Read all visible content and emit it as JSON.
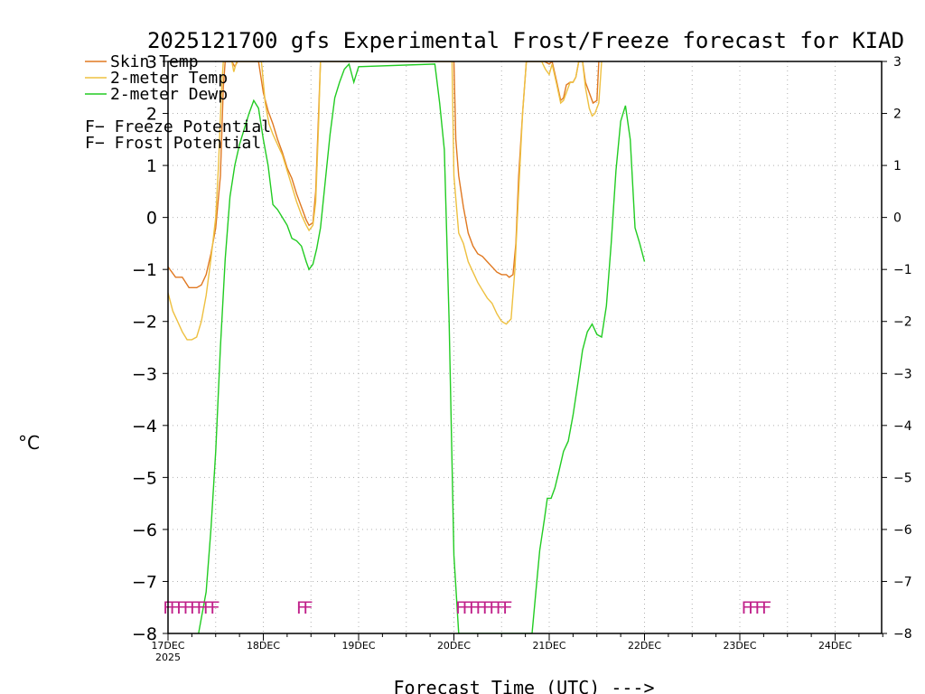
{
  "chart_data": {
    "type": "line",
    "title": "2025121700 gfs Experimental Frost/Freeze forecast for KIAD",
    "xlabel": "Forecast Time (UTC) --->",
    "ylabel": "°C",
    "ylim": [
      -8,
      3
    ],
    "xlim_days": [
      0,
      7.5
    ],
    "yticks": [
      3,
      2,
      1,
      0,
      -1,
      -2,
      -3,
      -4,
      -5,
      -6,
      -7,
      -8
    ],
    "ytick_labels": [
      "3",
      "2",
      "1",
      "0",
      "−1",
      "−2",
      "−3",
      "−4",
      "−5",
      "−6",
      "−7",
      "−8"
    ],
    "x_tick_labels": [
      "17DEC",
      "18DEC",
      "19DEC",
      "20DEC",
      "21DEC",
      "22DEC",
      "23DEC",
      "24DEC"
    ],
    "x_year_label": "2025",
    "grid": true,
    "series": [
      {
        "name": "Skin Temp",
        "color": "#e07820",
        "points": [
          [
            0.0,
            -0.95
          ],
          [
            0.08,
            -1.15
          ],
          [
            0.15,
            -1.15
          ],
          [
            0.22,
            -1.35
          ],
          [
            0.3,
            -1.35
          ],
          [
            0.35,
            -1.3
          ],
          [
            0.4,
            -1.1
          ],
          [
            0.45,
            -0.7
          ],
          [
            0.5,
            -0.2
          ],
          [
            0.55,
            0.8
          ],
          [
            0.58,
            2.5
          ],
          [
            0.6,
            3.0
          ],
          [
            0.67,
            3.0
          ],
          [
            0.7,
            2.9
          ],
          [
            0.73,
            3.0
          ],
          [
            0.95,
            3.0
          ],
          [
            1.0,
            2.4
          ],
          [
            1.05,
            2.05
          ],
          [
            1.1,
            1.8
          ],
          [
            1.15,
            1.5
          ],
          [
            1.2,
            1.25
          ],
          [
            1.25,
            0.95
          ],
          [
            1.3,
            0.75
          ],
          [
            1.35,
            0.45
          ],
          [
            1.4,
            0.2
          ],
          [
            1.45,
            -0.05
          ],
          [
            1.48,
            -0.15
          ],
          [
            1.52,
            -0.1
          ],
          [
            1.55,
            0.5
          ],
          [
            1.58,
            2.0
          ],
          [
            1.6,
            3.0
          ],
          [
            3.0,
            3.0
          ],
          [
            3.02,
            1.5
          ],
          [
            3.05,
            0.8
          ],
          [
            3.1,
            0.2
          ],
          [
            3.15,
            -0.3
          ],
          [
            3.2,
            -0.55
          ],
          [
            3.25,
            -0.7
          ],
          [
            3.3,
            -0.75
          ],
          [
            3.35,
            -0.85
          ],
          [
            3.4,
            -0.95
          ],
          [
            3.45,
            -1.05
          ],
          [
            3.5,
            -1.1
          ],
          [
            3.55,
            -1.1
          ],
          [
            3.58,
            -1.15
          ],
          [
            3.62,
            -1.1
          ],
          [
            3.65,
            -0.5
          ],
          [
            3.68,
            0.8
          ],
          [
            3.72,
            2.0
          ],
          [
            3.76,
            3.0
          ],
          [
            3.95,
            3.0
          ],
          [
            4.0,
            2.95
          ],
          [
            4.03,
            3.0
          ],
          [
            4.08,
            2.6
          ],
          [
            4.12,
            2.25
          ],
          [
            4.15,
            2.3
          ],
          [
            4.18,
            2.55
          ],
          [
            4.22,
            2.6
          ],
          [
            4.25,
            2.6
          ],
          [
            4.28,
            2.7
          ],
          [
            4.31,
            3.0
          ],
          [
            4.35,
            3.0
          ],
          [
            4.38,
            2.6
          ],
          [
            4.42,
            2.4
          ],
          [
            4.46,
            2.2
          ],
          [
            4.5,
            2.25
          ],
          [
            4.52,
            3.0
          ]
        ]
      },
      {
        "name": "2-meter Temp",
        "color": "#eec040",
        "points": [
          [
            0.0,
            -1.45
          ],
          [
            0.05,
            -1.8
          ],
          [
            0.1,
            -2.0
          ],
          [
            0.15,
            -2.2
          ],
          [
            0.2,
            -2.35
          ],
          [
            0.25,
            -2.35
          ],
          [
            0.3,
            -2.3
          ],
          [
            0.35,
            -2.0
          ],
          [
            0.4,
            -1.5
          ],
          [
            0.45,
            -0.8
          ],
          [
            0.5,
            0.0
          ],
          [
            0.53,
            1.0
          ],
          [
            0.56,
            2.4
          ],
          [
            0.58,
            3.0
          ],
          [
            0.67,
            3.0
          ],
          [
            0.69,
            2.8
          ],
          [
            0.72,
            3.0
          ],
          [
            0.98,
            3.0
          ],
          [
            1.02,
            2.2
          ],
          [
            1.06,
            1.8
          ],
          [
            1.1,
            1.6
          ],
          [
            1.15,
            1.4
          ],
          [
            1.2,
            1.2
          ],
          [
            1.25,
            0.9
          ],
          [
            1.3,
            0.6
          ],
          [
            1.35,
            0.3
          ],
          [
            1.4,
            0.05
          ],
          [
            1.45,
            -0.15
          ],
          [
            1.48,
            -0.25
          ],
          [
            1.52,
            -0.15
          ],
          [
            1.55,
            0.3
          ],
          [
            1.58,
            1.8
          ],
          [
            1.6,
            3.0
          ],
          [
            2.98,
            3.0
          ],
          [
            3.0,
            0.8
          ],
          [
            3.05,
            -0.3
          ],
          [
            3.1,
            -0.5
          ],
          [
            3.15,
            -0.85
          ],
          [
            3.2,
            -1.05
          ],
          [
            3.25,
            -1.25
          ],
          [
            3.3,
            -1.4
          ],
          [
            3.35,
            -1.55
          ],
          [
            3.4,
            -1.65
          ],
          [
            3.45,
            -1.85
          ],
          [
            3.5,
            -2.0
          ],
          [
            3.55,
            -2.05
          ],
          [
            3.6,
            -1.95
          ],
          [
            3.64,
            -1.0
          ],
          [
            3.68,
            0.5
          ],
          [
            3.72,
            2.0
          ],
          [
            3.76,
            3.0
          ],
          [
            3.92,
            3.0
          ],
          [
            3.96,
            2.85
          ],
          [
            4.0,
            2.75
          ],
          [
            4.03,
            2.95
          ],
          [
            4.08,
            2.55
          ],
          [
            4.12,
            2.2
          ],
          [
            4.15,
            2.25
          ],
          [
            4.18,
            2.4
          ],
          [
            4.22,
            2.6
          ],
          [
            4.25,
            2.6
          ],
          [
            4.28,
            2.7
          ],
          [
            4.31,
            3.0
          ],
          [
            4.35,
            3.0
          ],
          [
            4.38,
            2.5
          ],
          [
            4.42,
            2.1
          ],
          [
            4.45,
            1.95
          ],
          [
            4.48,
            2.0
          ],
          [
            4.52,
            2.2
          ],
          [
            4.55,
            3.0
          ]
        ]
      },
      {
        "name": "2-meter Dewp",
        "color": "#22cc22",
        "points": [
          [
            0.32,
            -8.0
          ],
          [
            0.4,
            -7.2
          ],
          [
            0.45,
            -6.0
          ],
          [
            0.5,
            -4.5
          ],
          [
            0.55,
            -2.5
          ],
          [
            0.6,
            -0.8
          ],
          [
            0.65,
            0.4
          ],
          [
            0.7,
            1.0
          ],
          [
            0.75,
            1.4
          ],
          [
            0.8,
            1.7
          ],
          [
            0.85,
            2.0
          ],
          [
            0.9,
            2.25
          ],
          [
            0.95,
            2.1
          ],
          [
            1.0,
            1.5
          ],
          [
            1.05,
            1.0
          ],
          [
            1.1,
            0.25
          ],
          [
            1.15,
            0.15
          ],
          [
            1.2,
            0.0
          ],
          [
            1.25,
            -0.15
          ],
          [
            1.3,
            -0.4
          ],
          [
            1.35,
            -0.45
          ],
          [
            1.4,
            -0.55
          ],
          [
            1.45,
            -0.85
          ],
          [
            1.48,
            -1.0
          ],
          [
            1.52,
            -0.9
          ],
          [
            1.56,
            -0.6
          ],
          [
            1.6,
            -0.2
          ],
          [
            1.65,
            0.7
          ],
          [
            1.7,
            1.6
          ],
          [
            1.75,
            2.3
          ],
          [
            1.8,
            2.6
          ],
          [
            1.85,
            2.85
          ],
          [
            1.9,
            2.95
          ],
          [
            1.95,
            2.6
          ],
          [
            2.0,
            2.9
          ],
          [
            2.8,
            2.95
          ],
          [
            2.85,
            2.2
          ],
          [
            2.9,
            1.3
          ],
          [
            2.95,
            -2.0
          ],
          [
            3.0,
            -6.5
          ],
          [
            3.05,
            -8.0
          ],
          [
            3.82,
            -8.0
          ],
          [
            3.86,
            -7.2
          ],
          [
            3.9,
            -6.4
          ],
          [
            3.95,
            -5.8
          ],
          [
            3.98,
            -5.4
          ],
          [
            4.02,
            -5.4
          ],
          [
            4.06,
            -5.2
          ],
          [
            4.1,
            -4.9
          ],
          [
            4.15,
            -4.5
          ],
          [
            4.2,
            -4.3
          ],
          [
            4.25,
            -3.8
          ],
          [
            4.3,
            -3.2
          ],
          [
            4.35,
            -2.55
          ],
          [
            4.4,
            -2.2
          ],
          [
            4.45,
            -2.05
          ],
          [
            4.5,
            -2.25
          ],
          [
            4.55,
            -2.3
          ],
          [
            4.6,
            -1.7
          ],
          [
            4.65,
            -0.5
          ],
          [
            4.7,
            0.9
          ],
          [
            4.75,
            1.85
          ],
          [
            4.8,
            2.15
          ],
          [
            4.85,
            1.5
          ],
          [
            4.9,
            -0.2
          ],
          [
            4.95,
            -0.5
          ],
          [
            5.0,
            -0.85
          ]
        ]
      }
    ],
    "flag_rows": [
      {
        "start_day": 0.0,
        "text": "FFFFFFFF",
        "color": "#c0208a"
      },
      {
        "start_day": 1.4,
        "text": "FF",
        "color": "#c0208a"
      },
      {
        "start_day": 3.07,
        "text": "FFFFFFFF",
        "color": "#c0208a"
      },
      {
        "start_day": 6.07,
        "text": "FFFF",
        "color": "#c0208a"
      }
    ],
    "legend": {
      "placement": "top-left",
      "lines": [
        {
          "label": "Skin Temp",
          "color": "#e07820"
        },
        {
          "label": "2-meter Temp",
          "color": "#eec040"
        },
        {
          "label": "2-meter Dewp",
          "color": "#22cc22"
        }
      ],
      "flags": [
        {
          "letter": "F",
          "label": " − Freeze Potential",
          "color": "#c0208a"
        },
        {
          "letter": "F",
          "label": " − Frost Potential",
          "color": "#3a58d8"
        }
      ]
    }
  }
}
